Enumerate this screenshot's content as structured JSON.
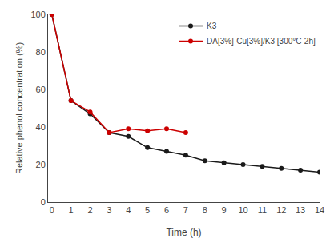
{
  "chart_data": {
    "type": "line",
    "xlabel": "Time (h)",
    "ylabel": "Relative phenol concentration (%)",
    "series": [
      {
        "name": "K3",
        "color": "#1a1a1a",
        "x": [
          0,
          1,
          2,
          3,
          4,
          5,
          6,
          7,
          8,
          9,
          10,
          11,
          12,
          13,
          14
        ],
        "values": [
          100,
          54,
          47,
          37,
          35,
          29,
          27,
          25,
          22,
          21,
          20,
          19,
          18,
          17,
          16
        ]
      },
      {
        "name": "DA[3%]-Cu[3%]/K3 [300°C-2h]",
        "color": "#cc0000",
        "x": [
          0,
          1,
          2,
          3,
          4,
          5,
          6,
          7
        ],
        "values": [
          100,
          54,
          48,
          37,
          39,
          38,
          39,
          37
        ]
      }
    ],
    "xlim": [
      -0.2,
      14
    ],
    "ylim": [
      0,
      100
    ],
    "xticks": [
      0,
      1,
      2,
      3,
      4,
      5,
      6,
      7,
      8,
      9,
      10,
      11,
      12,
      13,
      14
    ],
    "yticks": [
      0,
      20,
      40,
      60,
      80,
      100
    ],
    "grid": false,
    "legend": "upper right",
    "marker": "circle",
    "line_style": "solid"
  }
}
